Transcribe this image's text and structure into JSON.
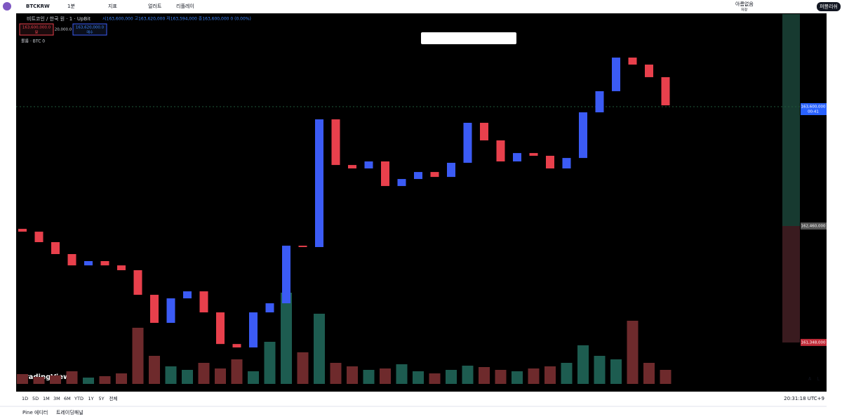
{
  "toolbar": {
    "symbol": "BTCKRW",
    "interval": "1분",
    "indicators": "지표",
    "alerts": "얼러트",
    "replay": "리플레이",
    "layout": "아름없음",
    "layout_sub": "저장",
    "publish": "퍼블리쉬"
  },
  "legend": {
    "title": "비트코인 / 한국 원 · 1 · UpBit",
    "ohlc": "시163,600,000 고163,620,000 저163,594,000 종163,600,000 0 (0.00%)",
    "sell": "163,600,000.0",
    "sell_label": "팔",
    "spread": "20,000.0",
    "buy": "163,620,000.0",
    "buy_label": "매수",
    "volume": "볼륨 · BTC 0"
  },
  "chart_data": {
    "type": "candlestick",
    "open": [
      162433000,
      162406000,
      162306000,
      162192000,
      162084000,
      162125000,
      162084000,
      162038000,
      161803000,
      161535000,
      161769000,
      161836000,
      161635000,
      161333000,
      161300000,
      161635000,
      161722000,
      162272000,
      162259000,
      163479000,
      163043000,
      163010000,
      163077000,
      162842000,
      162909000,
      162976000,
      162929000,
      163064000,
      163446000,
      163278000,
      163077000,
      163157000,
      163131000,
      163010000,
      163110000,
      163546000,
      163748000,
      164069000,
      164002000,
      163882000
    ],
    "close": [
      162406000,
      162306000,
      162192000,
      162084000,
      162125000,
      162084000,
      162038000,
      161803000,
      161535000,
      161769000,
      161836000,
      161635000,
      161333000,
      161300000,
      161635000,
      161722000,
      162272000,
      162259000,
      163479000,
      163043000,
      163010000,
      163077000,
      162842000,
      162909000,
      162976000,
      162929000,
      163064000,
      163446000,
      163278000,
      163077000,
      163157000,
      163131000,
      163010000,
      163110000,
      163546000,
      163748000,
      164069000,
      164002000,
      163882000,
      163613000
    ],
    "volume": [
      14,
      10,
      12,
      18,
      9,
      11,
      15,
      80,
      40,
      25,
      20,
      30,
      22,
      35,
      18,
      60,
      130,
      45,
      100,
      30,
      25,
      20,
      22,
      28,
      18,
      15,
      20,
      26,
      24,
      20,
      18,
      22,
      25,
      30,
      55,
      40,
      35,
      90,
      30,
      20
    ],
    "vlim": [
      0,
      150
    ],
    "ylim": [
      160878000,
      164485000
    ],
    "yticks": [
      {
        "value": 163600000,
        "label": "163,600,000"
      },
      {
        "value": 162460000,
        "label": "162,460,000"
      },
      {
        "value": 161348000,
        "label": "161,348,000"
      }
    ],
    "countdown": "00:41",
    "up_color": "#3b5bf5",
    "down_color": "#e8404c"
  },
  "bottom": {
    "ranges": [
      "1D",
      "5D",
      "1M",
      "3M",
      "6M",
      "YTD",
      "1Y",
      "5Y",
      "전체"
    ],
    "clock": "20:31:18 UTC+9",
    "pine": "Pine 에디터",
    "panel": "트레이딩패널",
    "brand": "TradingView",
    "auto": "A",
    "log": "L"
  }
}
